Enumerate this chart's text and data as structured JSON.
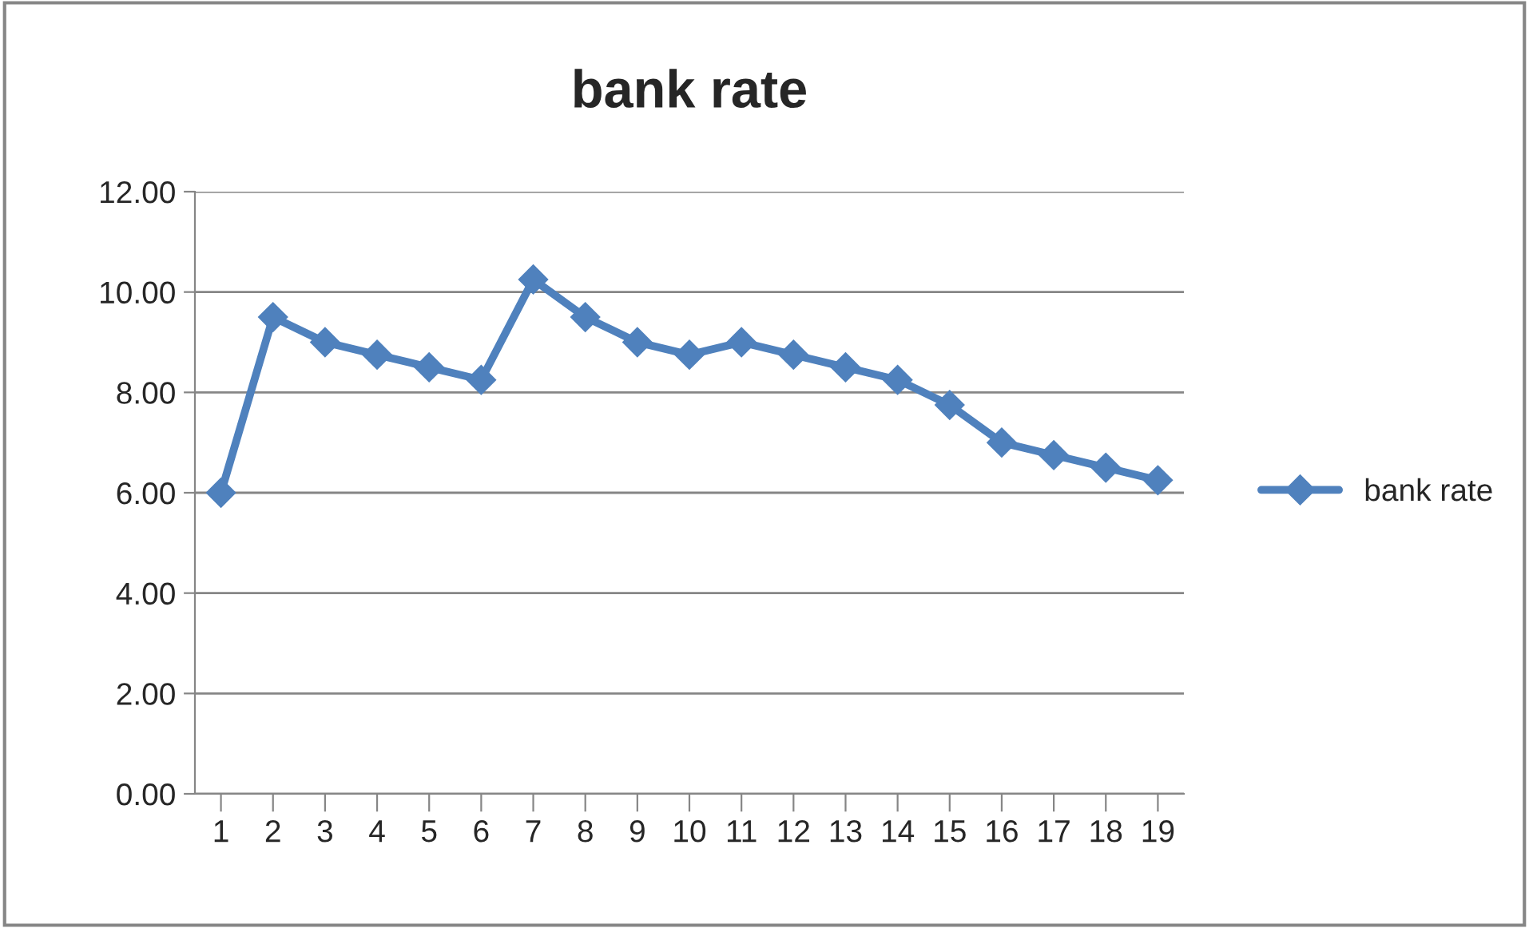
{
  "chart_data": {
    "type": "line",
    "title": "bank rate",
    "categories": [
      "1",
      "2",
      "3",
      "4",
      "5",
      "6",
      "7",
      "8",
      "9",
      "10",
      "11",
      "12",
      "13",
      "14",
      "15",
      "16",
      "17",
      "18",
      "19"
    ],
    "series": [
      {
        "name": "bank rate",
        "color": "#4f81bd",
        "values": [
          6.0,
          9.5,
          9.0,
          8.75,
          8.5,
          8.25,
          10.25,
          9.5,
          9.0,
          8.75,
          9.0,
          8.75,
          8.5,
          8.25,
          7.75,
          7.0,
          6.75,
          6.5,
          6.25
        ]
      }
    ],
    "ylim": [
      0,
      12
    ],
    "yticks": [
      {
        "value": 0,
        "label": "0.00"
      },
      {
        "value": 2,
        "label": "2.00"
      },
      {
        "value": 4,
        "label": "4.00"
      },
      {
        "value": 6,
        "label": "6.00"
      },
      {
        "value": 8,
        "label": "8.00"
      },
      {
        "value": 10,
        "label": "10.00"
      },
      {
        "value": 12,
        "label": "12.00"
      }
    ],
    "grid": "y",
    "legend": "right",
    "marker": "diamond",
    "line_style": "solid"
  }
}
